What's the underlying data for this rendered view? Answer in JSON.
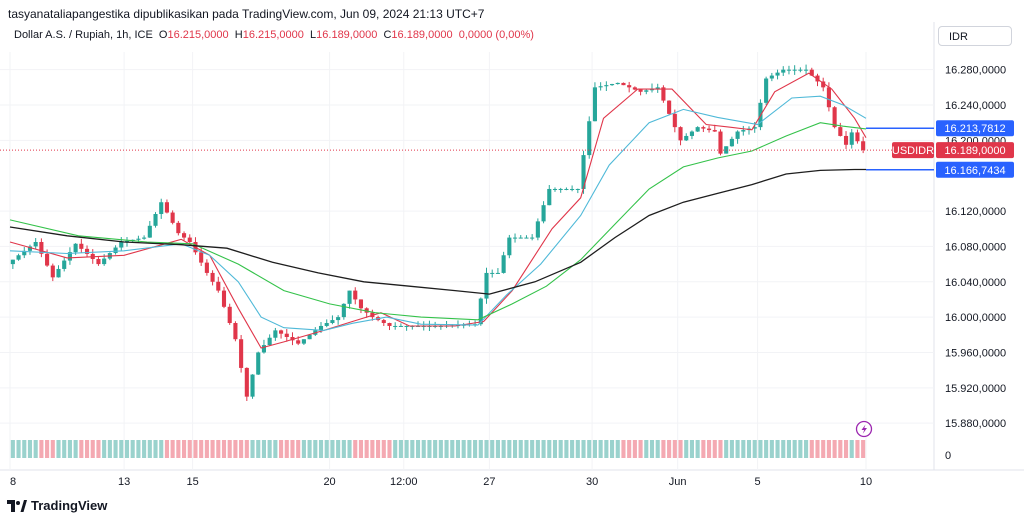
{
  "header": {
    "publisher_line": "tasyanataliapangestika dipublikasikan pada TradingView.com, Jun 09, 2024 21:13 UTC+7",
    "symbol": "Dollar A.S. / Rupiah, 1h, ICE",
    "open_label": "O",
    "open": "16.215,0000",
    "high_label": "H",
    "high": "16.215,0000",
    "low_label": "L",
    "low": "16.189,0000",
    "close_label": "C",
    "close": "16.189,0000",
    "change": "0,0000 (0,00%)"
  },
  "currency_button": "IDR",
  "footer": {
    "brand": "TradingView"
  },
  "colors": {
    "up": "#26a69a",
    "down": "#e0364a",
    "ma_fast": "#e0364a",
    "ma_mid": "#4fb9d8",
    "ma_slow": "#34c24a",
    "ma_long": "#1e1e1e",
    "price_tag": "#e0364a",
    "level_tag": "#2962ff"
  },
  "chart_data": {
    "type": "candlestick",
    "title": "Dollar A.S. / Rupiah, 1h, ICE",
    "y_ticks": [
      "16.280,0000",
      "16.240,0000",
      "16.200,0000",
      "16.120,0000",
      "16.080,0000",
      "16.040,0000",
      "16.000,0000",
      "15.960,0000",
      "15.920,0000",
      "15.880,0000"
    ],
    "y_tick_values": [
      16280,
      16240,
      16200,
      16120,
      16080,
      16040,
      16000,
      15960,
      15920,
      15880
    ],
    "ylim": [
      15870,
      16300
    ],
    "x_ticks": [
      "8",
      "13",
      "15",
      "20",
      "12:00",
      "27",
      "30",
      "Jun",
      "5",
      "10"
    ],
    "x_tick_positions": [
      0,
      20,
      32,
      56,
      69,
      84,
      102,
      117,
      131,
      150
    ],
    "bars_total": 150,
    "volume_axis_label": "0",
    "price_tags": [
      {
        "value": 16213.7812,
        "label": "16.213,7812",
        "kind": "level"
      },
      {
        "value": 16189.0,
        "label": "16.189,0000",
        "kind": "current",
        "symbol": "USDIDR"
      },
      {
        "value": 16166.7434,
        "label": "16.166,7434",
        "kind": "level"
      }
    ],
    "anchors": [
      [
        0,
        16060
      ],
      [
        5,
        16085
      ],
      [
        8,
        16045
      ],
      [
        12,
        16083
      ],
      [
        16,
        16060
      ],
      [
        20,
        16085
      ],
      [
        24,
        16090
      ],
      [
        27,
        16130
      ],
      [
        30,
        16095
      ],
      [
        32,
        16085
      ],
      [
        35,
        16050
      ],
      [
        37,
        16030
      ],
      [
        40,
        15975
      ],
      [
        42,
        15910
      ],
      [
        44,
        15960
      ],
      [
        47,
        15985
      ],
      [
        51,
        15970
      ],
      [
        55,
        15990
      ],
      [
        58,
        16000
      ],
      [
        60,
        16030
      ],
      [
        62,
        16010
      ],
      [
        64,
        16000
      ],
      [
        67,
        15990
      ],
      [
        70,
        15990
      ],
      [
        76,
        15990
      ],
      [
        82,
        15992
      ],
      [
        84,
        16050
      ],
      [
        86,
        16050
      ],
      [
        88,
        16090
      ],
      [
        92,
        16090
      ],
      [
        95,
        16145
      ],
      [
        100,
        16145
      ],
      [
        103,
        16260
      ],
      [
        107,
        16265
      ],
      [
        111,
        16255
      ],
      [
        114,
        16260
      ],
      [
        118,
        16200
      ],
      [
        121,
        16215
      ],
      [
        124,
        16210
      ],
      [
        125,
        16185
      ],
      [
        128,
        16210
      ],
      [
        131,
        16215
      ],
      [
        133,
        16270
      ],
      [
        136,
        16280
      ],
      [
        140,
        16280
      ],
      [
        143,
        16260
      ],
      [
        145,
        16215
      ],
      [
        147,
        16195
      ],
      [
        148,
        16209
      ],
      [
        150,
        16189
      ]
    ],
    "ma_series": [
      {
        "name": "ma_fast",
        "points": [
          [
            0,
            16085
          ],
          [
            10,
            16067
          ],
          [
            20,
            16070
          ],
          [
            30,
            16088
          ],
          [
            35,
            16070
          ],
          [
            40,
            16010
          ],
          [
            44,
            15965
          ],
          [
            48,
            15972
          ],
          [
            55,
            15985
          ],
          [
            60,
            15995
          ],
          [
            65,
            16005
          ],
          [
            70,
            15990
          ],
          [
            78,
            15990
          ],
          [
            83,
            15995
          ],
          [
            88,
            16030
          ],
          [
            95,
            16100
          ],
          [
            100,
            16135
          ],
          [
            104,
            16225
          ],
          [
            110,
            16258
          ],
          [
            116,
            16258
          ],
          [
            122,
            16218
          ],
          [
            126,
            16215
          ],
          [
            130,
            16212
          ],
          [
            134,
            16255
          ],
          [
            140,
            16276
          ],
          [
            144,
            16258
          ],
          [
            148,
            16225
          ],
          [
            150,
            16203
          ]
        ]
      },
      {
        "name": "ma_mid",
        "points": [
          [
            0,
            16075
          ],
          [
            10,
            16072
          ],
          [
            20,
            16075
          ],
          [
            30,
            16083
          ],
          [
            35,
            16070
          ],
          [
            40,
            16040
          ],
          [
            44,
            16000
          ],
          [
            48,
            15988
          ],
          [
            55,
            15985
          ],
          [
            60,
            15993
          ],
          [
            66,
            16000
          ],
          [
            72,
            15992
          ],
          [
            82,
            15991
          ],
          [
            87,
            16025
          ],
          [
            93,
            16060
          ],
          [
            100,
            16115
          ],
          [
            105,
            16172
          ],
          [
            112,
            16220
          ],
          [
            118,
            16235
          ],
          [
            124,
            16226
          ],
          [
            131,
            16218
          ],
          [
            137,
            16248
          ],
          [
            142,
            16250
          ],
          [
            146,
            16240
          ],
          [
            150,
            16225
          ]
        ]
      },
      {
        "name": "ma_slow",
        "points": [
          [
            0,
            16110
          ],
          [
            12,
            16092
          ],
          [
            24,
            16085
          ],
          [
            32,
            16083
          ],
          [
            40,
            16060
          ],
          [
            48,
            16030
          ],
          [
            56,
            16015
          ],
          [
            64,
            16005
          ],
          [
            72,
            16000
          ],
          [
            82,
            15997
          ],
          [
            88,
            16015
          ],
          [
            94,
            16035
          ],
          [
            100,
            16065
          ],
          [
            106,
            16105
          ],
          [
            112,
            16145
          ],
          [
            118,
            16170
          ],
          [
            124,
            16180
          ],
          [
            130,
            16188
          ],
          [
            136,
            16205
          ],
          [
            142,
            16220
          ],
          [
            146,
            16216
          ],
          [
            150,
            16213
          ]
        ]
      },
      {
        "name": "ma_long",
        "points": [
          [
            0,
            16102
          ],
          [
            10,
            16092
          ],
          [
            20,
            16085
          ],
          [
            30,
            16082
          ],
          [
            38,
            16078
          ],
          [
            46,
            16062
          ],
          [
            54,
            16050
          ],
          [
            62,
            16040
          ],
          [
            70,
            16035
          ],
          [
            78,
            16030
          ],
          [
            84,
            16026
          ],
          [
            92,
            16040
          ],
          [
            100,
            16062
          ],
          [
            106,
            16090
          ],
          [
            112,
            16115
          ],
          [
            118,
            16130
          ],
          [
            124,
            16140
          ],
          [
            130,
            16150
          ],
          [
            136,
            16162
          ],
          [
            142,
            16166
          ],
          [
            148,
            16167
          ],
          [
            150,
            16167
          ]
        ]
      }
    ]
  }
}
